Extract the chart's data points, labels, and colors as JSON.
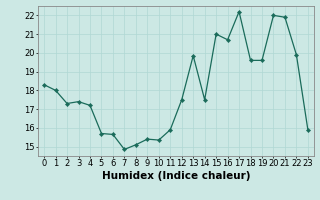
{
  "x": [
    0,
    1,
    2,
    3,
    4,
    5,
    6,
    7,
    8,
    9,
    10,
    11,
    12,
    13,
    14,
    15,
    16,
    17,
    18,
    19,
    20,
    21,
    22,
    23
  ],
  "y": [
    18.3,
    18.0,
    17.3,
    17.4,
    17.2,
    15.7,
    15.65,
    14.85,
    15.1,
    15.4,
    15.35,
    15.9,
    17.5,
    19.85,
    17.5,
    21.0,
    20.7,
    22.2,
    19.6,
    19.6,
    22.0,
    21.9,
    19.9,
    15.9
  ],
  "xlabel": "Humidex (Indice chaleur)",
  "ylim": [
    14.5,
    22.5
  ],
  "xlim": [
    -0.5,
    23.5
  ],
  "yticks": [
    15,
    16,
    17,
    18,
    19,
    20,
    21,
    22
  ],
  "xticks": [
    0,
    1,
    2,
    3,
    4,
    5,
    6,
    7,
    8,
    9,
    10,
    11,
    12,
    13,
    14,
    15,
    16,
    17,
    18,
    19,
    20,
    21,
    22,
    23
  ],
  "line_color": "#1a6b5a",
  "marker_color": "#1a6b5a",
  "bg_color": "#cce8e4",
  "grid_color": "#b0d8d4",
  "tick_label_fontsize": 6.0,
  "xlabel_fontsize": 7.5
}
